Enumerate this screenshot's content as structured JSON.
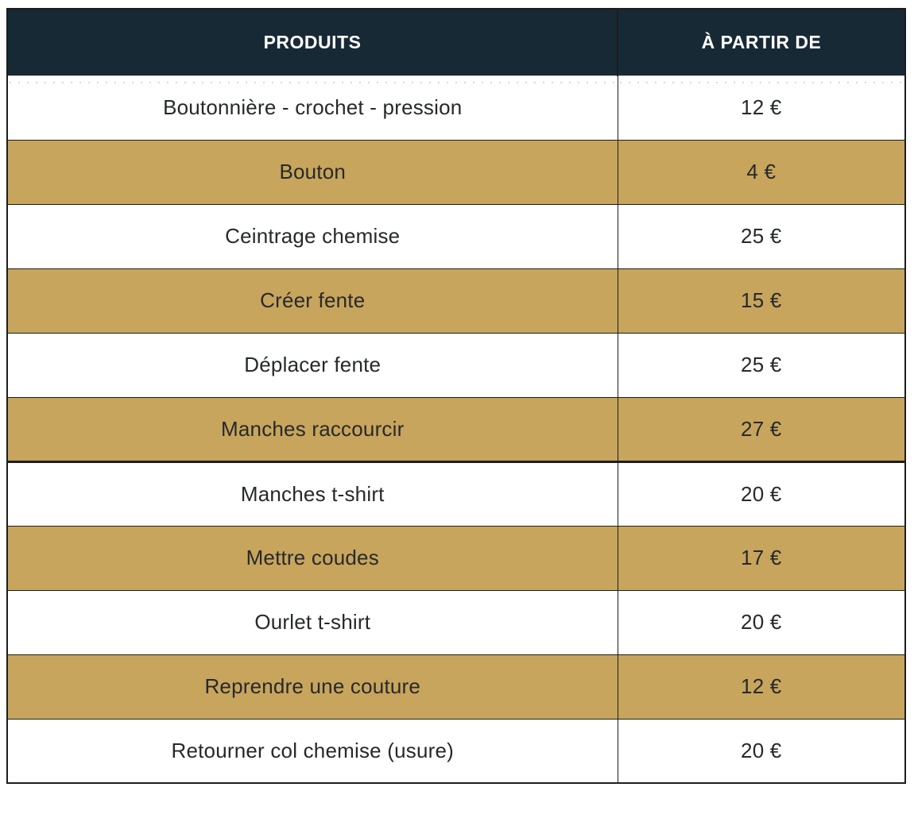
{
  "table": {
    "columns": [
      {
        "label": "PRODUITS"
      },
      {
        "label": "À PARTIR DE"
      }
    ],
    "rows": [
      {
        "product": "Boutonnière - crochet - pression",
        "price": "12 €",
        "highlight": false,
        "thick_bottom": false
      },
      {
        "product": "Bouton",
        "price": "4 €",
        "highlight": true,
        "thick_bottom": false
      },
      {
        "product": "Ceintrage chemise",
        "price": "25 €",
        "highlight": false,
        "thick_bottom": false
      },
      {
        "product": "Créer fente",
        "price": "15 €",
        "highlight": true,
        "thick_bottom": false
      },
      {
        "product": "Déplacer fente",
        "price": "25 €",
        "highlight": false,
        "thick_bottom": false
      },
      {
        "product": "Manches raccourcir",
        "price": "27 €",
        "highlight": true,
        "thick_bottom": true
      },
      {
        "product": "Manches t-shirt",
        "price": "20 €",
        "highlight": false,
        "thick_bottom": false
      },
      {
        "product": "Mettre coudes",
        "price": "17 €",
        "highlight": true,
        "thick_bottom": false
      },
      {
        "product": "Ourlet t-shirt",
        "price": "20 €",
        "highlight": false,
        "thick_bottom": false
      },
      {
        "product": "Reprendre une couture",
        "price": "12 €",
        "highlight": true,
        "thick_bottom": false
      },
      {
        "product": "Retourner col chemise (usure)",
        "price": "20 €",
        "highlight": false,
        "thick_bottom": false
      }
    ]
  },
  "colors": {
    "header_bg": "#182936",
    "header_text": "#ffffff",
    "highlight_row_bg": "#c8a55c",
    "row_bg": "#ffffff",
    "border": "#1d1d1d",
    "body_text": "#26292c",
    "divider_dotted": "#d8d8d8",
    "header_underline": "#cfcfcf"
  }
}
